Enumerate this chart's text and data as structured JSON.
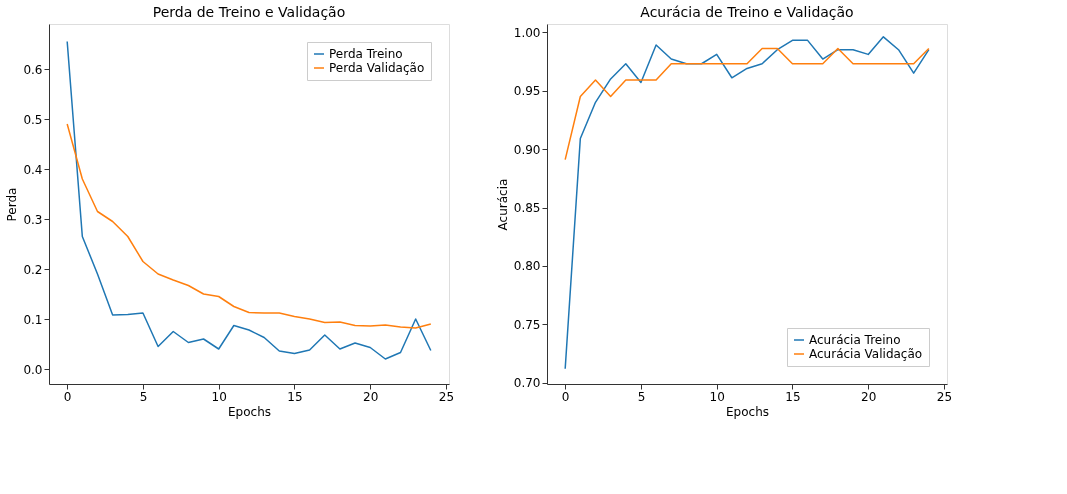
{
  "chart_data": [
    {
      "type": "line",
      "title": "Perda de Treino e Validação",
      "xlabel": "Epochs",
      "ylabel": "Perda",
      "x": [
        0,
        1,
        2,
        3,
        4,
        5,
        6,
        7,
        8,
        9,
        10,
        11,
        12,
        13,
        14,
        15,
        16,
        17,
        18,
        19,
        20,
        21,
        22,
        23,
        24
      ],
      "xlim": [
        -1.2,
        25.2
      ],
      "xticks": [
        0,
        5,
        10,
        15,
        20,
        25
      ],
      "ylim": [
        -0.03,
        0.69
      ],
      "yticks": [
        {
          "value": 0,
          "label": "0.0"
        },
        0.1,
        0.2,
        0.3,
        0.4,
        0.5,
        0.6
      ],
      "grid": false,
      "legend": "top right",
      "marker": "none",
      "line_style": "solid",
      "series": [
        {
          "name": "Perda Treino",
          "color": "#1f77b4",
          "values": [
            0.655,
            0.265,
            0.19,
            0.108,
            0.109,
            0.112,
            0.045,
            0.075,
            0.053,
            0.06,
            0.04,
            0.087,
            0.078,
            0.063,
            0.036,
            0.031,
            0.038,
            0.068,
            0.04,
            0.052,
            0.043,
            0.02,
            0.033,
            0.1,
            0.037
          ]
        },
        {
          "name": "Perda Validação",
          "color": "#ff7f0e",
          "values": [
            0.49,
            0.38,
            0.315,
            0.295,
            0.265,
            0.215,
            0.19,
            0.178,
            0.167,
            0.15,
            0.145,
            0.125,
            0.113,
            0.112,
            0.112,
            0.105,
            0.1,
            0.093,
            0.094,
            0.087,
            0.086,
            0.088,
            0.084,
            0.082,
            0.09
          ]
        }
      ]
    },
    {
      "type": "line",
      "title": "Acurácia de Treino e Validação",
      "xlabel": "Epochs",
      "ylabel": "Acurácia",
      "x": [
        0,
        1,
        2,
        3,
        4,
        5,
        6,
        7,
        8,
        9,
        10,
        11,
        12,
        13,
        14,
        15,
        16,
        17,
        18,
        19,
        20,
        21,
        22,
        23,
        24
      ],
      "xlim": [
        -1.2,
        25.2
      ],
      "xticks": [
        0,
        5,
        10,
        15,
        20,
        25
      ],
      "ylim": [
        0.699,
        1.007
      ],
      "yticks": [
        {
          "value": 0.7,
          "label": "0.70"
        },
        0.75,
        {
          "value": 0.8,
          "label": "0.80"
        },
        0.85,
        {
          "value": 0.9,
          "label": "0.90"
        },
        0.95,
        {
          "value": 1.0,
          "label": "1.00"
        }
      ],
      "grid": false,
      "legend": "bottom right",
      "marker": "none",
      "line_style": "solid",
      "series": [
        {
          "name": "Acurácia Treino",
          "color": "#1f77b4",
          "values": [
            0.712,
            0.909,
            0.94,
            0.96,
            0.973,
            0.957,
            0.989,
            0.977,
            0.973,
            0.973,
            0.981,
            0.961,
            0.969,
            0.973,
            0.985,
            0.993,
            0.993,
            0.977,
            0.985,
            0.985,
            0.981,
            0.996,
            0.985,
            0.965,
            0.985
          ]
        },
        {
          "name": "Acurácia Validação",
          "color": "#ff7f0e",
          "values": [
            0.891,
            0.945,
            0.959,
            0.945,
            0.959,
            0.959,
            0.959,
            0.973,
            0.973,
            0.973,
            0.973,
            0.973,
            0.973,
            0.986,
            0.986,
            0.973,
            0.973,
            0.973,
            0.986,
            0.973,
            0.973,
            0.973,
            0.973,
            0.973,
            0.986
          ]
        }
      ]
    }
  ]
}
